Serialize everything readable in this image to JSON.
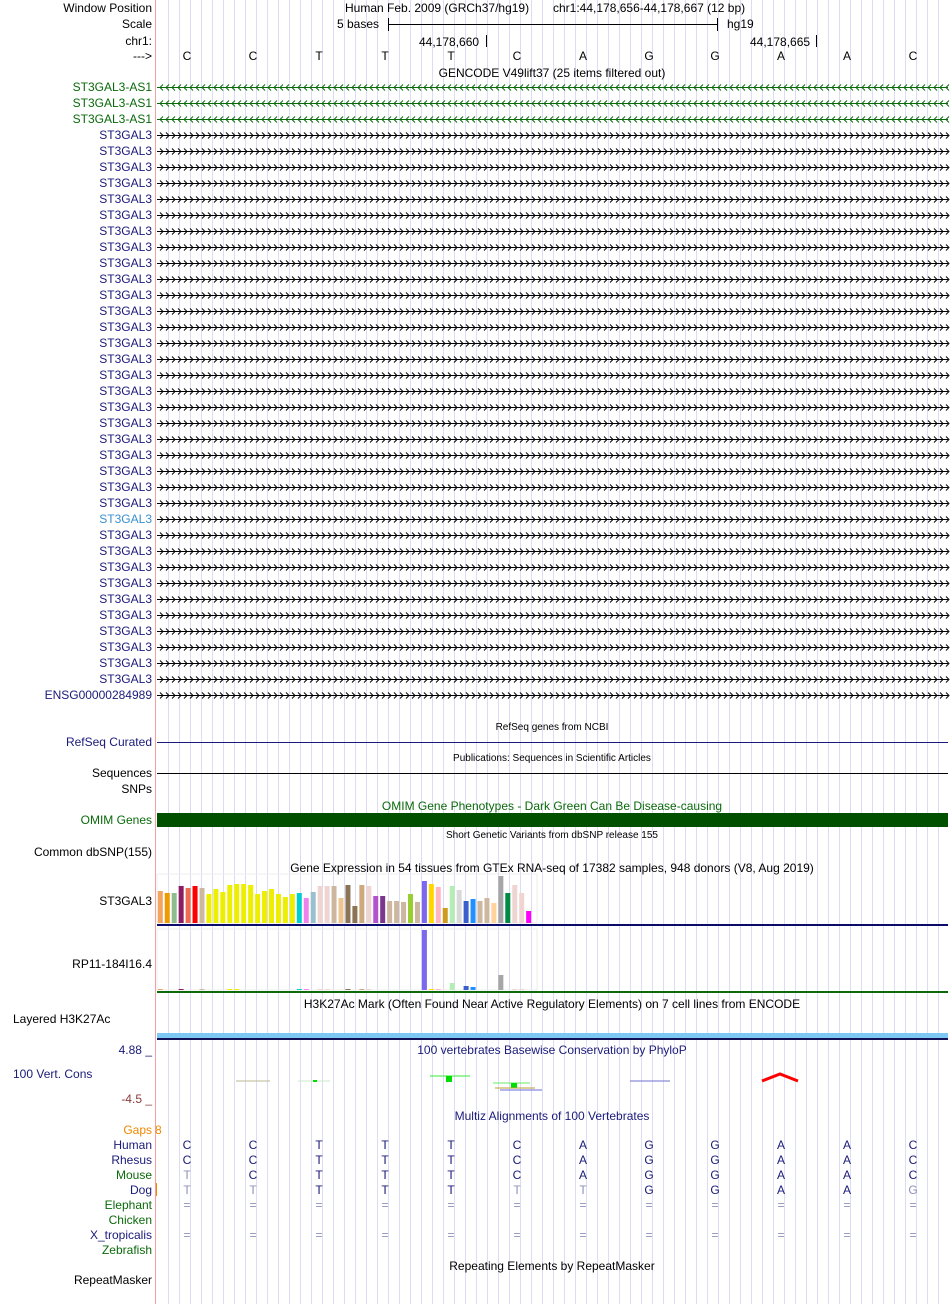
{
  "header": {
    "window_position_label": "Window Position",
    "scale_label": "Scale",
    "chr_label": "chr1:",
    "strand_label": "--->",
    "assembly": "Human Feb. 2009 (GRCh37/hg19)",
    "position": "chr1:44,178,656-44,178,667 (12 bp)",
    "scale_text": "5 bases",
    "db": "hg19",
    "tick1": "44,178,660",
    "tick2": "44,178,665"
  },
  "sequence": [
    "C",
    "C",
    "T",
    "T",
    "T",
    "C",
    "A",
    "G",
    "G",
    "A",
    "A",
    "C"
  ],
  "gencode": {
    "title": "GENCODE V49lift37 (25 items filtered out)",
    "genes": [
      "ST3GAL3-AS1",
      "ST3GAL3-AS1",
      "ST3GAL3-AS1",
      "ST3GAL3",
      "ST3GAL3",
      "ST3GAL3",
      "ST3GAL3",
      "ST3GAL3",
      "ST3GAL3",
      "ST3GAL3",
      "ST3GAL3",
      "ST3GAL3",
      "ST3GAL3",
      "ST3GAL3",
      "ST3GAL3",
      "ST3GAL3",
      "ST3GAL3",
      "ST3GAL3",
      "ST3GAL3",
      "ST3GAL3",
      "ST3GAL3",
      "ST3GAL3",
      "ST3GAL3",
      "ST3GAL3",
      "ST3GAL3",
      "ST3GAL3",
      "ST3GAL3",
      "ST3GAL3",
      "ST3GAL3",
      "ST3GAL3",
      "ST3GAL3",
      "ST3GAL3",
      "ST3GAL3",
      "ST3GAL3",
      "ST3GAL3",
      "ST3GAL3",
      "ST3GAL3",
      "ST3GAL3",
      "ENSG00000284989"
    ],
    "highlighted_index": 27
  },
  "refseq": {
    "title": "RefSeq genes from NCBI",
    "label": "RefSeq Curated"
  },
  "publications": {
    "title": "Publications: Sequences in Scientific Articles",
    "label1": "Sequences",
    "label2": "SNPs"
  },
  "omim": {
    "title": "OMIM Gene Phenotypes - Dark Green Can Be Disease-causing",
    "label": "OMIM Genes",
    "color": "#005000"
  },
  "dbsnp": {
    "title": "Short Genetic Variants from dbSNP release 155",
    "label": "Common dbSNP(155)"
  },
  "gtex": {
    "title": "Gene Expression in 54 tissues from GTEx RNA-seq of 17382 samples, 948 donors (V8, Aug 2019)",
    "genes": [
      {
        "label": "ST3GAL3",
        "values": [
          32,
          30,
          30,
          37,
          35,
          37,
          35,
          29,
          34,
          31,
          38,
          39,
          39,
          38,
          29,
          32,
          34,
          29,
          26,
          29,
          30,
          25,
          31,
          37,
          37,
          37,
          25,
          38,
          17,
          38,
          37,
          27,
          27,
          22,
          22,
          21,
          29,
          21,
          42,
          39,
          36,
          15,
          37,
          33,
          22,
          24,
          22,
          25,
          20,
          47,
          30,
          38,
          30,
          12
        ]
      },
      {
        "label": "RP11-184I16.4",
        "values": [
          1,
          0,
          0,
          1,
          0,
          0,
          1,
          0,
          0,
          0,
          1,
          1,
          0,
          0,
          0,
          0,
          0,
          0,
          0,
          0,
          1,
          1,
          0,
          1,
          1,
          0,
          0,
          1,
          0,
          1,
          1,
          0,
          0,
          0,
          0,
          0,
          0,
          0,
          60,
          1,
          1,
          0,
          7,
          0,
          4,
          3,
          0,
          0,
          0,
          15,
          0,
          1,
          1,
          0
        ]
      }
    ],
    "colors": [
      "#F4A460",
      "#EE9A00",
      "#8FBC8F",
      "#8B1C62",
      "#EE6A50",
      "#FF0000",
      "#CDB79E",
      "#EEEE00",
      "#EEEE00",
      "#EEEE00",
      "#EEEE00",
      "#EEEE00",
      "#EEEE00",
      "#EEEE00",
      "#EEEE00",
      "#EEEE00",
      "#EEEE00",
      "#EEEE00",
      "#EEEE00",
      "#EEEE00",
      "#00CED1",
      "#EE82EE",
      "#9AC0CD",
      "#EED5D2",
      "#EED5D2",
      "#CDB79E",
      "#EEC591",
      "#8B7355",
      "#8B7355",
      "#CDAA7D",
      "#EED5D2",
      "#B452CD",
      "#7A378B",
      "#CDB79E",
      "#CDB79E",
      "#CDB79E",
      "#9ACD32",
      "#CDB79E",
      "#7B68EE",
      "#FFD700",
      "#FFB6C1",
      "#CD9B1D",
      "#B4EEB4",
      "#D9D9D9",
      "#3A5FCD",
      "#1E90FF",
      "#CDB79E",
      "#CDB79E",
      "#FFD39B",
      "#A6A6A6",
      "#008B45",
      "#EED5D2",
      "#EED5D2",
      "#FF00FF"
    ]
  },
  "h3k27ac": {
    "title": "H3K27Ac Mark (Often Found Near Active Regulatory Elements) on 7 cell lines from ENCODE",
    "label": "Layered H3K27Ac"
  },
  "phylop": {
    "title": "100 vertebrates Basewise Conservation by PhyloP",
    "label": "100 Vert. Cons",
    "max": "4.88 _",
    "min": "-4.5 _"
  },
  "multiz": {
    "title": "Multiz Alignments of 100 Vertebrates",
    "gaps_label": "Gaps",
    "gaps_value": "8",
    "species": [
      {
        "name": "Human",
        "color": "#1a1a7a",
        "bases": [
          "C",
          "C",
          "T",
          "T",
          "T",
          "C",
          "A",
          "G",
          "G",
          "A",
          "A",
          "C"
        ],
        "faded": []
      },
      {
        "name": "Rhesus",
        "color": "#1a1a7a",
        "bases": [
          "C",
          "C",
          "T",
          "T",
          "T",
          "C",
          "A",
          "G",
          "G",
          "A",
          "A",
          "C"
        ],
        "faded": []
      },
      {
        "name": "Mouse",
        "color": "#0a6a0a",
        "bases": [
          "T",
          "C",
          "T",
          "T",
          "T",
          "C",
          "A",
          "G",
          "G",
          "A",
          "A",
          "C"
        ],
        "faded": [
          0
        ]
      },
      {
        "name": "Dog",
        "color": "#1a1a7a",
        "bases": [
          "T",
          "T",
          "T",
          "T",
          "T",
          "T",
          "T",
          "G",
          "G",
          "A",
          "A",
          "G"
        ],
        "faded": [
          0,
          1,
          5,
          6,
          11
        ]
      },
      {
        "name": "Elephant",
        "color": "#0a6a0a",
        "bases": [
          "=",
          "=",
          "=",
          "=",
          "=",
          "=",
          "=",
          "=",
          "=",
          "=",
          "=",
          "="
        ],
        "faded": [
          0,
          1,
          2,
          3,
          4,
          5,
          6,
          7,
          8,
          9,
          10,
          11
        ]
      },
      {
        "name": "Chicken",
        "color": "#0a6a0a",
        "bases": [],
        "faded": []
      },
      {
        "name": "X_tropicalis",
        "color": "#1a1a7a",
        "bases": [
          "=",
          "=",
          "=",
          "=",
          "=",
          "=",
          "=",
          "=",
          "=",
          "=",
          "=",
          "="
        ],
        "faded": [
          0,
          1,
          2,
          3,
          4,
          5,
          6,
          7,
          8,
          9,
          10,
          11
        ]
      },
      {
        "name": "Zebrafish",
        "color": "#0a6a0a",
        "bases": [],
        "faded": []
      }
    ]
  },
  "repeatmasker": {
    "title": "Repeating Elements by RepeatMasker",
    "label": "RepeatMasker"
  }
}
